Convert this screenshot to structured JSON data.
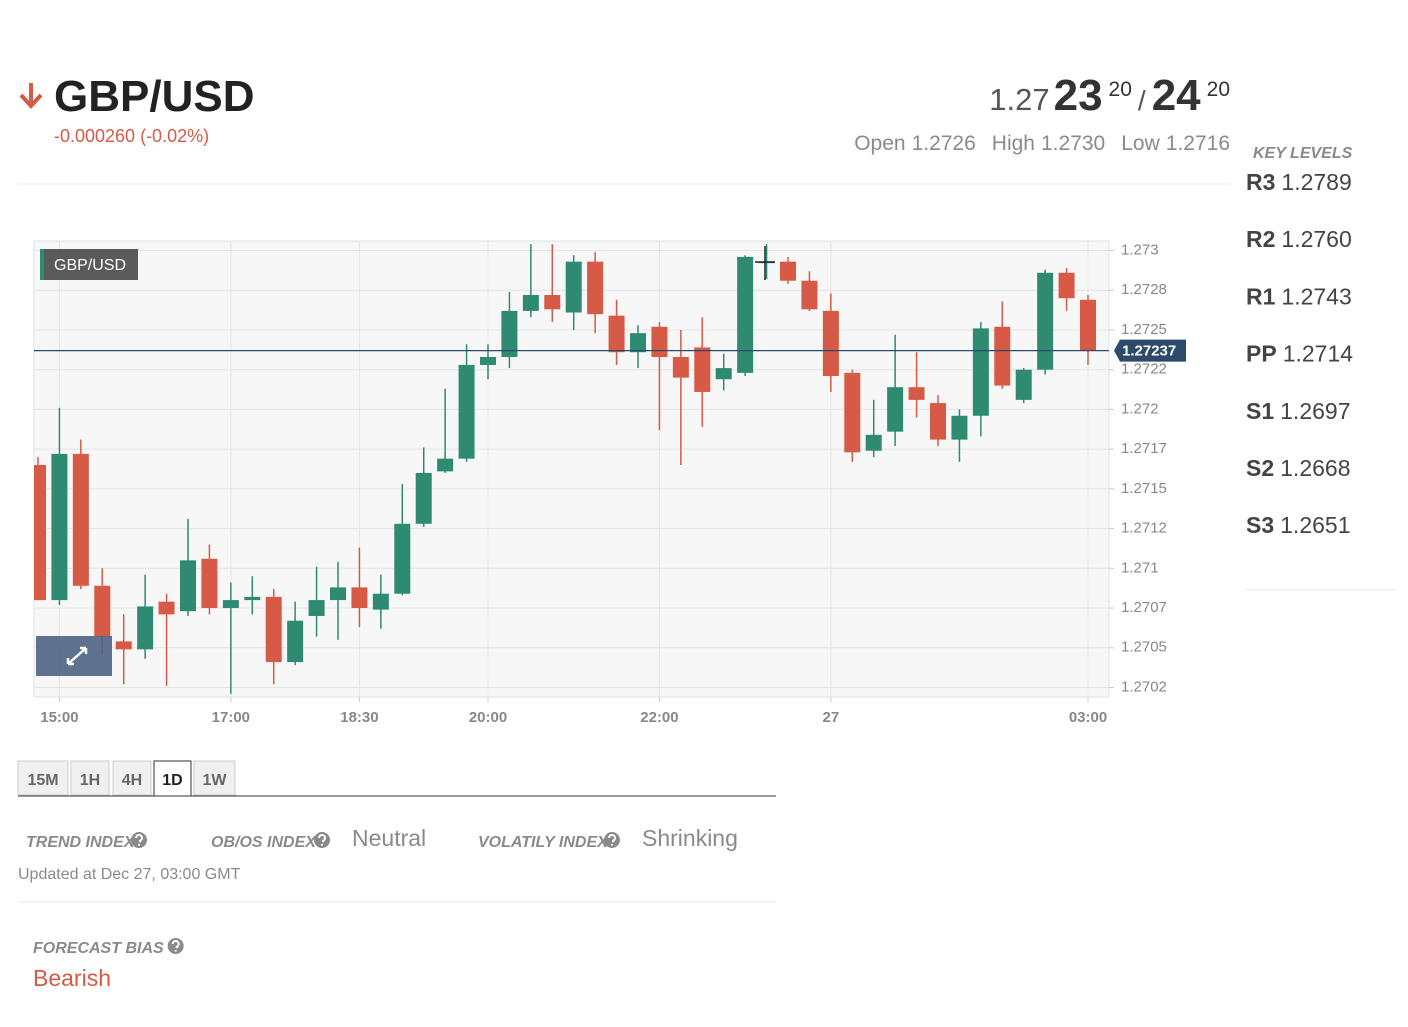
{
  "header": {
    "symbol": "GBP/USD",
    "change": "-0.000260 (-0.02%)",
    "bid": {
      "prefix": "1.27",
      "big": "23",
      "small": "20"
    },
    "separator": "/",
    "ask": {
      "big": "24",
      "small": "20"
    },
    "stats": [
      {
        "label": "Open",
        "value": "1.2726"
      },
      {
        "label": "High",
        "value": "1.2730"
      },
      {
        "label": "Low",
        "value": "1.2716"
      }
    ]
  },
  "key_levels": {
    "title": "KEY LEVELS",
    "levels": [
      {
        "name": "R3",
        "value": "1.2789"
      },
      {
        "name": "R2",
        "value": "1.2760"
      },
      {
        "name": "R1",
        "value": "1.2743"
      },
      {
        "name": "PP",
        "value": "1.2714"
      },
      {
        "name": "S1",
        "value": "1.2697"
      },
      {
        "name": "S2",
        "value": "1.2668"
      },
      {
        "name": "S3",
        "value": "1.2651"
      }
    ]
  },
  "chart_data": {
    "type": "candlestick",
    "series_name": "GBP/USD",
    "categories": [
      null,
      "15:00",
      null,
      null,
      null,
      null,
      null,
      null,
      null,
      "17:00",
      null,
      null,
      null,
      null,
      null,
      "18:30",
      null,
      null,
      null,
      null,
      null,
      "20:00",
      null,
      null,
      null,
      null,
      null,
      null,
      null,
      "22:00",
      null,
      null,
      null,
      null,
      null,
      null,
      null,
      "27",
      null,
      null,
      null,
      null,
      null,
      null,
      null,
      null,
      null,
      null,
      null,
      "03:00"
    ],
    "open": [
      1.27165,
      1.2708,
      1.27172,
      1.27089,
      1.27054,
      1.27049,
      1.27079,
      1.27073,
      1.27106,
      1.27075,
      1.2708,
      1.27082,
      1.27041,
      1.2707,
      1.2708,
      1.27088,
      1.27074,
      1.27084,
      1.27128,
      1.27161,
      1.27169,
      1.27228,
      1.27233,
      1.27262,
      1.27272,
      1.27261,
      1.27293,
      1.27259,
      1.27236,
      1.27252,
      1.27233,
      1.27239,
      1.27219,
      1.27223,
      1.27293,
      1.27293,
      1.27281,
      1.27262,
      1.27223,
      1.27174,
      1.27186,
      1.27214,
      1.27204,
      1.27181,
      1.27196,
      1.27252,
      1.27206,
      1.27225,
      1.27286,
      1.27269
    ],
    "high": [
      1.2717,
      1.27201,
      1.27181,
      1.271,
      1.27071,
      1.27096,
      1.27084,
      1.27131,
      1.27115,
      1.27091,
      1.27095,
      1.27087,
      1.27079,
      1.27101,
      1.27104,
      1.27113,
      1.27096,
      1.27153,
      1.27176,
      1.27213,
      1.27241,
      1.27241,
      1.27274,
      1.27304,
      1.27304,
      1.27297,
      1.27299,
      1.27269,
      1.27253,
      1.27255,
      1.2725,
      1.27258,
      1.27235,
      1.27297,
      1.27304,
      1.27296,
      1.27287,
      1.27273,
      1.27225,
      1.27206,
      1.27247,
      1.27236,
      1.27209,
      1.272,
      1.27255,
      1.27268,
      1.27226,
      1.27288,
      1.27289,
      1.27272
    ],
    "low": [
      1.2708,
      1.27077,
      1.27087,
      1.27046,
      1.27027,
      1.27043,
      1.27026,
      1.2707,
      1.27071,
      1.27021,
      1.27071,
      1.27027,
      1.27039,
      1.27057,
      1.27055,
      1.27063,
      1.27062,
      1.27083,
      1.27126,
      1.2716,
      1.27167,
      1.27219,
      1.27226,
      1.27258,
      1.27255,
      1.2725,
      1.27248,
      1.27228,
      1.27226,
      1.27187,
      1.27165,
      1.27189,
      1.27212,
      1.27221,
      1.27282,
      1.27279,
      1.27262,
      1.27211,
      1.27167,
      1.2717,
      1.27177,
      1.27195,
      1.27177,
      1.27167,
      1.27183,
      1.27213,
      1.27204,
      1.27222,
      1.27262,
      1.27228
    ],
    "close": [
      1.2708,
      1.27172,
      1.27089,
      1.27057,
      1.27049,
      1.27076,
      1.27071,
      1.27105,
      1.27075,
      1.2708,
      1.27082,
      1.27041,
      1.27067,
      1.2708,
      1.27088,
      1.27075,
      1.27084,
      1.27128,
      1.2716,
      1.27169,
      1.27228,
      1.27233,
      1.27262,
      1.27272,
      1.27263,
      1.27293,
      1.2726,
      1.27236,
      1.27248,
      1.27233,
      1.2722,
      1.27211,
      1.27226,
      1.27296,
      1.27293,
      1.27281,
      1.27263,
      1.27221,
      1.27173,
      1.27184,
      1.27214,
      1.27206,
      1.27181,
      1.27196,
      1.27251,
      1.27215,
      1.27225,
      1.27286,
      1.2727,
      1.27237
    ],
    "up_color": "#2f8a72",
    "down_color": "#d65a45",
    "current_price": 1.27237,
    "current_color": "#2d4a6b",
    "ylim": [
      1.27019,
      1.27306
    ],
    "yticks": [
      {
        "value": 1.27025,
        "label": "1.2702"
      },
      1.2705,
      {
        "value": 1.27075,
        "label": "1.2707"
      },
      1.271,
      {
        "value": 1.27125,
        "label": "1.2712"
      },
      1.2715,
      {
        "value": 1.27175,
        "label": "1.2717"
      },
      1.272,
      {
        "value": 1.27225,
        "label": "1.2722"
      },
      1.2725,
      {
        "value": 1.27275,
        "label": "1.2728"
      },
      1.273
    ],
    "grid": true
  },
  "tabs": [
    "15M",
    "1H",
    "4H",
    "1D",
    "1W"
  ],
  "active_tab": 3,
  "indices": [
    {
      "label": "TREND INDEX"
    },
    {
      "label": "OB/OS INDEX",
      "value": "Neutral"
    },
    {
      "label": "VOLATILY INDEX",
      "value": "Shrinking"
    }
  ],
  "updated": "Updated at Dec 27, 03:00 GMT",
  "forecast": {
    "label": "FORECAST BIAS",
    "value": "Bearish"
  }
}
